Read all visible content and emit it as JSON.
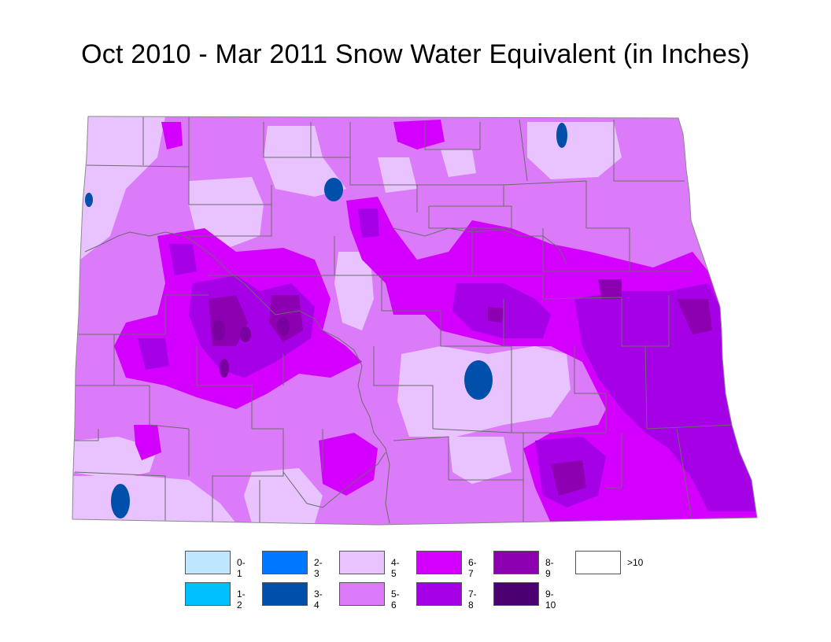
{
  "title": "Oct 2010 - Mar 2011 Snow Water Equivalent (in Inches)",
  "legend": [
    {
      "label": "0-1",
      "color": "#bfe6ff"
    },
    {
      "label": "2-3",
      "color": "#0077ff"
    },
    {
      "label": "4-5",
      "color": "#e8c3ff"
    },
    {
      "label": "6-7",
      "color": "#d400ff"
    },
    {
      "label": "8-9",
      "color": "#8c00b2"
    },
    {
      "label": ">10",
      "color": "#ffffff"
    },
    {
      "label": "1-2",
      "color": "#00bfff"
    },
    {
      "label": "3-4",
      "color": "#004fa8"
    },
    {
      "label": "5-6",
      "color": "#db7bfa"
    },
    {
      "label": "7-8",
      "color": "#a600e6"
    },
    {
      "label": "9-10",
      "color": "#4a0070"
    }
  ]
}
